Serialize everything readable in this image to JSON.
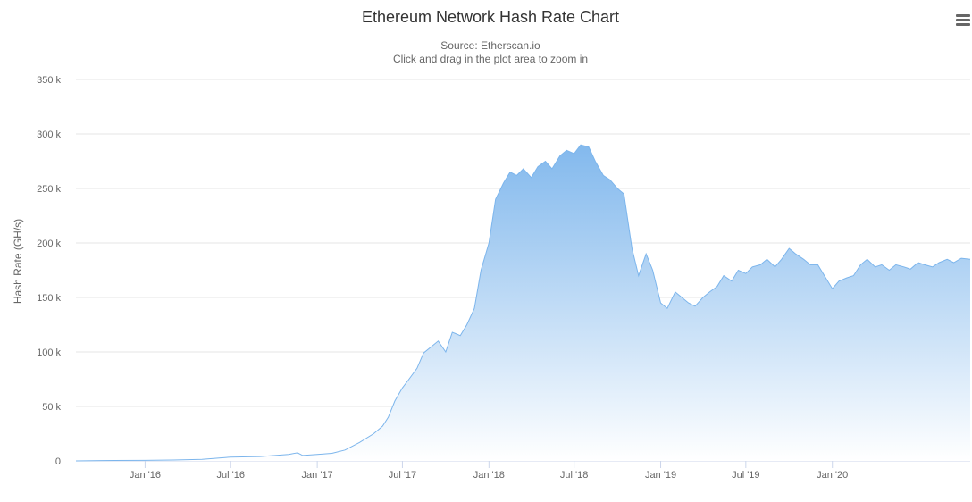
{
  "chart_title": "Ethereum Network Hash Rate Chart",
  "chart_subtitle": "Source: Etherscan.io",
  "chart_instruction": "Click and drag in the plot area to zoom in",
  "menu_icon": "hamburger-menu-icon",
  "colors": {
    "series_line": "#7cb5ec",
    "area_top": "#7cb5ec",
    "area_bottom": "#ffffff",
    "grid": "#e6e6e6",
    "axis_text": "#666666"
  },
  "chart_data": {
    "type": "area",
    "title": "Ethereum Network Hash Rate Chart",
    "subtitle": "Source: Etherscan.io",
    "xlabel": "",
    "ylabel": "Hash Rate (GH/s)",
    "ylim": [
      0,
      350000
    ],
    "y_ticks": [
      0,
      50000,
      100000,
      150000,
      200000,
      250000,
      300000,
      350000
    ],
    "y_tick_labels": [
      "0",
      "50 k",
      "100 k",
      "150 k",
      "200 k",
      "250 k",
      "300 k",
      "350 k"
    ],
    "xlim": [
      "2015-08-07",
      "2020-10-20"
    ],
    "x_ticks": [
      "2016-01-01",
      "2016-07-01",
      "2017-01-01",
      "2017-07-01",
      "2018-01-01",
      "2018-07-01",
      "2019-01-01",
      "2019-07-01",
      "2020-01-01"
    ],
    "x_tick_labels": [
      "Jan '16",
      "Jul '16",
      "Jan '17",
      "Jul '17",
      "Jan '18",
      "Jul '18",
      "Jan '19",
      "Jul '19",
      "Jan '20"
    ],
    "grid": true,
    "legend": "none",
    "series": [
      {
        "x": [
          "2015-08-07",
          "2015-10-01",
          "2016-01-01",
          "2016-03-01",
          "2016-05-01",
          "2016-07-01",
          "2016-09-01",
          "2016-11-01",
          "2016-11-20",
          "2016-12-01",
          "2017-01-01",
          "2017-02-01",
          "2017-03-01",
          "2017-04-01",
          "2017-05-01",
          "2017-05-20",
          "2017-06-01",
          "2017-06-15",
          "2017-07-01",
          "2017-07-15",
          "2017-08-01",
          "2017-08-15",
          "2017-09-01",
          "2017-09-15",
          "2017-10-01",
          "2017-10-15",
          "2017-11-01",
          "2017-11-15",
          "2017-12-01",
          "2017-12-15",
          "2018-01-01",
          "2018-01-15",
          "2018-02-01",
          "2018-02-15",
          "2018-03-01",
          "2018-03-15",
          "2018-04-01",
          "2018-04-15",
          "2018-05-01",
          "2018-05-15",
          "2018-06-01",
          "2018-06-15",
          "2018-07-01",
          "2018-07-15",
          "2018-08-01",
          "2018-08-15",
          "2018-09-01",
          "2018-09-15",
          "2018-10-01",
          "2018-10-15",
          "2018-11-01",
          "2018-11-15",
          "2018-12-01",
          "2018-12-15",
          "2019-01-01",
          "2019-01-15",
          "2019-02-01",
          "2019-02-15",
          "2019-03-01",
          "2019-03-15",
          "2019-04-01",
          "2019-04-15",
          "2019-05-01",
          "2019-05-15",
          "2019-06-01",
          "2019-06-15",
          "2019-07-01",
          "2019-07-15",
          "2019-08-01",
          "2019-08-15",
          "2019-09-01",
          "2019-09-15",
          "2019-10-01",
          "2019-10-15",
          "2019-11-01",
          "2019-11-15",
          "2019-12-01",
          "2019-12-15",
          "2020-01-01",
          "2020-01-15",
          "2020-02-01",
          "2020-02-15",
          "2020-03-01",
          "2020-03-15",
          "2020-04-01",
          "2020-04-15",
          "2020-05-01",
          "2020-05-15",
          "2020-06-01",
          "2020-06-15",
          "2020-07-01",
          "2020-07-15",
          "2020-08-01",
          "2020-08-15",
          "2020-09-01",
          "2020-09-15",
          "2020-10-01",
          "2020-10-20"
        ],
        "y": [
          0,
          300,
          500,
          800,
          1500,
          3500,
          4000,
          6000,
          7500,
          5000,
          6000,
          7000,
          10000,
          17000,
          25000,
          32000,
          40000,
          55000,
          67000,
          75000,
          85000,
          99000,
          105000,
          110000,
          100000,
          118000,
          115000,
          125000,
          140000,
          175000,
          200000,
          240000,
          255000,
          265000,
          262000,
          268000,
          260000,
          270000,
          275000,
          268000,
          280000,
          285000,
          282000,
          290000,
          288000,
          275000,
          262000,
          258000,
          250000,
          245000,
          195000,
          170000,
          190000,
          175000,
          145000,
          140000,
          155000,
          150000,
          145000,
          142000,
          150000,
          155000,
          160000,
          170000,
          165000,
          175000,
          172000,
          178000,
          180000,
          185000,
          178000,
          185000,
          195000,
          190000,
          185000,
          180000,
          180000,
          170000,
          158000,
          165000,
          168000,
          170000,
          180000,
          185000,
          178000,
          180000,
          175000,
          180000,
          178000,
          176000,
          182000,
          180000,
          178000,
          182000,
          185000,
          182000,
          186000,
          185000
        ]
      }
    ]
  }
}
